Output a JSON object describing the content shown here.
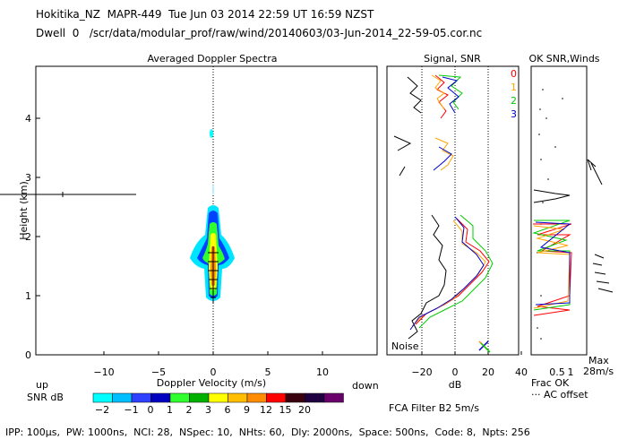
{
  "header": {
    "line1": "Hokitika_NZ  MAPR-449  Tue Jun 03 2014 22:59 UT 16:59 NZST",
    "line2": "Dwell  0   /scr/data/modular_prof/raw/wind/20140603/03-Jun-2014_22-59-05.cor.nc"
  },
  "footer": "IPP: 100μs,  PW: 1000ns,  NCI: 28,  NSpec: 10,  NHts: 60,  Dly: 2000ns,  Space: 500ns,  Code: 8,  Npts: 256",
  "colorbar": {
    "title": "SNR dB",
    "colors": [
      "#00ffff",
      "#00bfff",
      "#3040ff",
      "#0000c0",
      "#30ff30",
      "#00b000",
      "#ffff00",
      "#ffbf00",
      "#ff8c00",
      "#ff0000",
      "#3a0010",
      "#200040",
      "#6a006a"
    ],
    "ticks": [
      "−2",
      "−1",
      "0",
      "1",
      "2",
      "3",
      "6",
      "9",
      "12",
      "15",
      "20"
    ]
  },
  "labels": {
    "up": "up",
    "down": "down",
    "noise": "Noise",
    "fca": "FCA Filter B2  5m/s",
    "frac_ok": "Frac OK",
    "ac_offset": "··· AC offset",
    "max": "Max",
    "max_val": "28m/s"
  },
  "chart_data": [
    {
      "type": "heatmap",
      "title": "Averaged Doppler Spectra",
      "xlabel": "Doppler Velocity (m/s)",
      "ylabel": "Height (km)",
      "xlim": [
        -19,
        15
      ],
      "ylim": [
        0,
        4.7
      ],
      "xticks": [
        "−10",
        "−5",
        "0",
        "5",
        "10"
      ],
      "yticks": [
        "0",
        "1",
        "2",
        "3",
        "4"
      ],
      "cursor_height_km": 2.65,
      "spectrum_core": {
        "velocity_center": 0,
        "height_range": [
          0.9,
          2.3
        ]
      }
    },
    {
      "type": "line",
      "title": "Signal, SNR",
      "xlabel": "dB",
      "xlim": [
        -40,
        40
      ],
      "xticks": [
        "−20",
        "0",
        "20",
        "40"
      ],
      "series": [
        {
          "name": "0",
          "color": "#ff0000"
        },
        {
          "name": "1",
          "color": "#ffa500"
        },
        {
          "name": "2",
          "color": "#00cc00"
        },
        {
          "name": "3",
          "color": "#0000cc"
        }
      ],
      "signal_profile": [
        [
          -25,
          0.3
        ],
        [
          -22,
          0.6
        ],
        [
          -20,
          0.8
        ],
        [
          -12,
          1.0
        ],
        [
          -8,
          1.2
        ],
        [
          -10,
          1.5
        ],
        [
          -5,
          1.8
        ],
        [
          -12,
          2.1
        ],
        [
          -15,
          2.3
        ]
      ],
      "snr_profile": [
        [
          -20,
          0.8
        ],
        [
          -5,
          1.0
        ],
        [
          15,
          1.2
        ],
        [
          20,
          1.5
        ],
        [
          18,
          1.8
        ],
        [
          10,
          2.1
        ],
        [
          5,
          2.3
        ]
      ]
    },
    {
      "type": "line",
      "title": "OK SNR,Winds",
      "xlabel": "Frac OK",
      "xticks": [
        "0.5",
        "1"
      ],
      "legend": [
        "0",
        "1",
        "2",
        "3"
      ],
      "legend_colors": [
        "#ff0000",
        "#ffa500",
        "#00cc00",
        "#0000cc"
      ]
    }
  ]
}
